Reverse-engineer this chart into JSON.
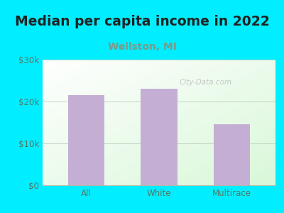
{
  "title": "Median per capita income in 2022",
  "subtitle": "Wellston, MI",
  "categories": [
    "All",
    "White",
    "Multirace"
  ],
  "values": [
    21500,
    23000,
    14500
  ],
  "bar_color": "#c5aed4",
  "title_fontsize": 13.5,
  "title_color": "#222222",
  "subtitle_fontsize": 10,
  "subtitle_color": "#7a9a8a",
  "tick_color": "#557766",
  "bg_outer": "#00eeff",
  "ylim": [
    0,
    30000
  ],
  "yticks": [
    0,
    10000,
    20000,
    30000
  ],
  "ytick_labels": [
    "$0",
    "$10k",
    "$20k",
    "$30k"
  ],
  "watermark": "City-Data.com",
  "grid_color": "#bbccbb",
  "spine_color": "#aabbaa"
}
